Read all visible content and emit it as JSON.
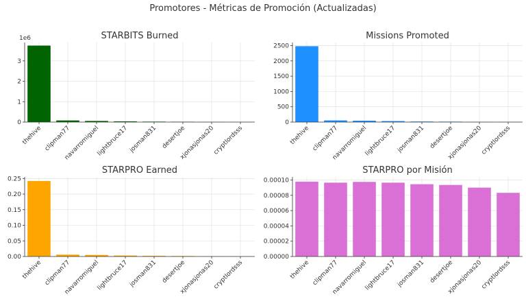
{
  "suptitle": "Promotores - Métricas de Promoción (Actualizadas)",
  "chart_data": [
    {
      "type": "bar",
      "title": "STARBITS Burned",
      "categories": [
        "thehive",
        "clipman77",
        "navarromiguel",
        "lightbruce17",
        "josman831",
        "desertjoe",
        "xjonasjonas20",
        "cryptlordsss"
      ],
      "values": [
        3750000,
        80000,
        55000,
        35000,
        22000,
        16000,
        5000,
        3000
      ],
      "ylim": [
        0,
        3900000
      ],
      "yticks": [
        0,
        1,
        2,
        3
      ],
      "ytick_labels": [
        "0",
        "1",
        "2",
        "3"
      ],
      "yscale_factor": 1000000,
      "offset_label": "1e6",
      "color": "#006400",
      "grid": true
    },
    {
      "type": "bar",
      "title": "Missions Promoted",
      "categories": [
        "thehive",
        "clipman77",
        "navarromiguel",
        "lightbruce17",
        "josman831",
        "desertjoe",
        "xjonasjonas20",
        "cryptlordsss"
      ],
      "values": [
        2480,
        55,
        45,
        32,
        18,
        14,
        5,
        3
      ],
      "ylim": [
        0,
        2600
      ],
      "yticks": [
        0,
        500,
        1000,
        1500,
        2000,
        2500
      ],
      "ytick_labels": [
        "0",
        "500",
        "1000",
        "1500",
        "2000",
        "2500"
      ],
      "yscale_factor": 1,
      "color": "#1e90ff",
      "grid": true
    },
    {
      "type": "bar",
      "title": "STARPRO Earned",
      "categories": [
        "thehive",
        "clipman77",
        "navarromiguel",
        "lightbruce17",
        "josman831",
        "desertjoe",
        "xjonasjonas20",
        "cryptlordsss"
      ],
      "values": [
        0.242,
        0.006,
        0.005,
        0.003,
        0.002,
        0.0015,
        0.0005,
        0.0003
      ],
      "ylim": [
        0,
        0.255
      ],
      "yticks": [
        0,
        0.05,
        0.1,
        0.15,
        0.2,
        0.25
      ],
      "ytick_labels": [
        "0.00",
        "0.05",
        "0.10",
        "0.15",
        "0.20",
        "0.25"
      ],
      "yscale_factor": 1,
      "color": "#ffa500",
      "grid": true
    },
    {
      "type": "bar",
      "title": "STARPRO por Misión",
      "categories": [
        "thehive",
        "clipman77",
        "navarromiguel",
        "lightbruce17",
        "josman831",
        "desertjoe",
        "xjonasjonas20",
        "cryptlordsss"
      ],
      "values": [
        9.78e-05,
        9.65e-05,
        9.75e-05,
        9.65e-05,
        9.45e-05,
        9.35e-05,
        9e-05,
        8.32e-05
      ],
      "ylim": [
        0,
        0.000104
      ],
      "yticks": [
        0,
        2e-05,
        4e-05,
        6e-05,
        8e-05,
        0.0001
      ],
      "ytick_labels": [
        "0.00000",
        "0.00002",
        "0.00004",
        "0.00006",
        "0.00008",
        "0.00010"
      ],
      "yscale_factor": 1,
      "color": "#da70d6",
      "grid": true
    }
  ]
}
